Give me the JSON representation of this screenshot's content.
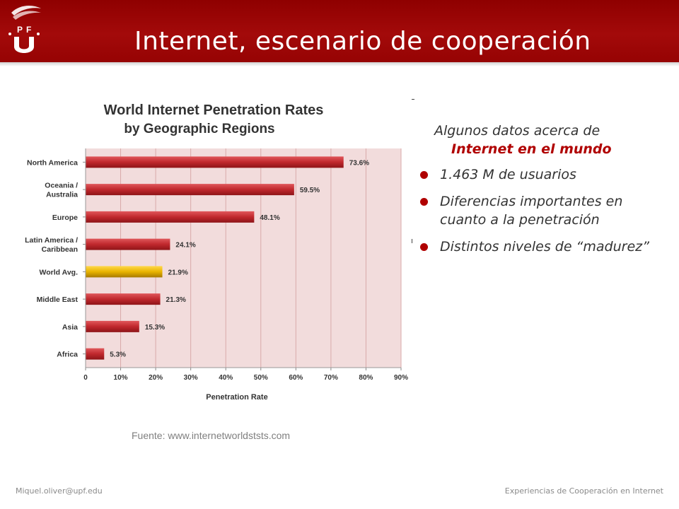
{
  "slide": {
    "title": "Internet, escenario de cooperación",
    "source": "Fuente: www.internetworldststs.com",
    "footer_left": "Miquel.oliver@upf.edu",
    "footer_right": "Experiencias de Cooperación en Internet"
  },
  "logo": {
    "text": "UPF",
    "color": "#ffffff"
  },
  "panel": {
    "intro": "Algunos datos acerca de",
    "highlight": "Internet en el mundo",
    "bullets": [
      "1.463 M de usuarios",
      "Diferencias importantes en cuanto a la penetración",
      "Distintos niveles de “madurez”"
    ]
  },
  "colors": {
    "header": "#9b0606",
    "bar": "#c0282d",
    "highlight_bar": "#e8b400",
    "accent_text": "#b00000",
    "plot_bg": "#f2dcdc"
  },
  "chart_data": {
    "type": "bar",
    "orientation": "horizontal",
    "title": "World Internet Penetration Rates",
    "subtitle": "by Geographic Regions",
    "xlabel": "Penetration Rate",
    "ylabel": "",
    "categories": [
      "North America",
      "Oceania / Australia",
      "Europe",
      "Latin America / Caribbean",
      "World Avg.",
      "Middle East",
      "Asia",
      "Africa"
    ],
    "category_lines": [
      [
        "North America"
      ],
      [
        "Oceania /",
        "Australia"
      ],
      [
        "Europe"
      ],
      [
        "Latin America /",
        "Caribbean"
      ],
      [
        "World Avg."
      ],
      [
        "Middle East"
      ],
      [
        "Asia"
      ],
      [
        "Africa"
      ]
    ],
    "values": [
      73.6,
      59.5,
      48.1,
      24.1,
      21.9,
      21.3,
      15.3,
      5.3
    ],
    "value_labels": [
      "73.6%",
      "59.5%",
      "48.1%",
      "24.1%",
      "21.9%",
      "21.3%",
      "15.3%",
      "5.3%"
    ],
    "highlight_category": "World Avg.",
    "xlim": [
      0,
      90
    ],
    "xticks": [
      0,
      10,
      20,
      30,
      40,
      50,
      60,
      70,
      80,
      90
    ],
    "xtick_labels": [
      "0",
      "10%",
      "20%",
      "30%",
      "40%",
      "50%",
      "60%",
      "70%",
      "80%",
      "90%"
    ],
    "grid": true,
    "legend": "none"
  }
}
